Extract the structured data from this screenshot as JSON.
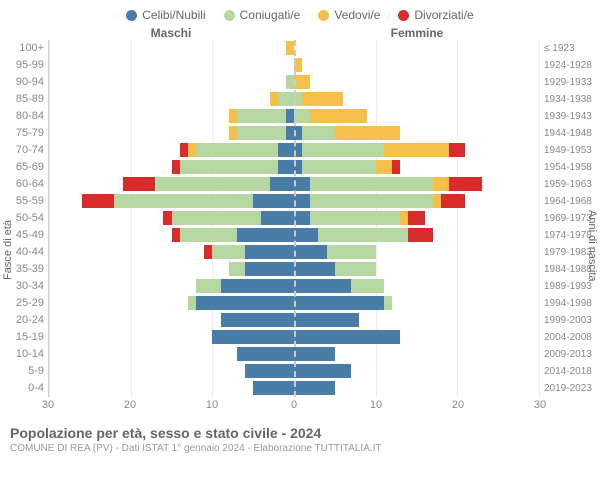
{
  "legend": [
    {
      "label": "Celibi/Nubili",
      "color": "#4a7ca8"
    },
    {
      "label": "Coniugati/e",
      "color": "#b6d7a1"
    },
    {
      "label": "Vedovi/e",
      "color": "#f5c04a"
    },
    {
      "label": "Divorziati/e",
      "color": "#d62c2c"
    }
  ],
  "header_left": "Maschi",
  "header_right": "Femmine",
  "ylabel_left": "Fasce di età",
  "ylabel_right": "Anni di nascita",
  "xmax": 30,
  "xticks_m": [
    30,
    20,
    10,
    0
  ],
  "xticks_f": [
    0,
    10,
    20,
    30
  ],
  "title": "Popolazione per età, sesso e stato civile - 2024",
  "subtitle": "COMUNE DI REA (PV) - Dati ISTAT 1° gennaio 2024 - Elaborazione TUTTITALIA.IT",
  "rows": [
    {
      "age": "100+",
      "birth": "≤ 1923",
      "m": {
        "cel": 0,
        "con": 0,
        "ved": 1,
        "div": 0
      },
      "f": {
        "cel": 0,
        "con": 0,
        "ved": 0,
        "div": 0
      }
    },
    {
      "age": "95-99",
      "birth": "1924-1928",
      "m": {
        "cel": 0,
        "con": 0,
        "ved": 0,
        "div": 0
      },
      "f": {
        "cel": 0,
        "con": 0,
        "ved": 1,
        "div": 0
      }
    },
    {
      "age": "90-94",
      "birth": "1929-1933",
      "m": {
        "cel": 0,
        "con": 1,
        "ved": 0,
        "div": 0
      },
      "f": {
        "cel": 0,
        "con": 0,
        "ved": 2,
        "div": 0
      }
    },
    {
      "age": "85-89",
      "birth": "1934-1938",
      "m": {
        "cel": 0,
        "con": 2,
        "ved": 1,
        "div": 0
      },
      "f": {
        "cel": 0,
        "con": 1,
        "ved": 5,
        "div": 0
      }
    },
    {
      "age": "80-84",
      "birth": "1939-1943",
      "m": {
        "cel": 1,
        "con": 6,
        "ved": 1,
        "div": 0
      },
      "f": {
        "cel": 0,
        "con": 2,
        "ved": 7,
        "div": 0
      }
    },
    {
      "age": "75-79",
      "birth": "1944-1948",
      "m": {
        "cel": 1,
        "con": 6,
        "ved": 1,
        "div": 0
      },
      "f": {
        "cel": 1,
        "con": 4,
        "ved": 8,
        "div": 0
      }
    },
    {
      "age": "70-74",
      "birth": "1949-1953",
      "m": {
        "cel": 2,
        "con": 10,
        "ved": 1,
        "div": 1
      },
      "f": {
        "cel": 1,
        "con": 10,
        "ved": 8,
        "div": 2
      }
    },
    {
      "age": "65-69",
      "birth": "1954-1958",
      "m": {
        "cel": 2,
        "con": 12,
        "ved": 0,
        "div": 1
      },
      "f": {
        "cel": 1,
        "con": 9,
        "ved": 2,
        "div": 1
      }
    },
    {
      "age": "60-64",
      "birth": "1959-1963",
      "m": {
        "cel": 3,
        "con": 14,
        "ved": 0,
        "div": 4
      },
      "f": {
        "cel": 2,
        "con": 15,
        "ved": 2,
        "div": 4
      }
    },
    {
      "age": "55-59",
      "birth": "1964-1968",
      "m": {
        "cel": 5,
        "con": 17,
        "ved": 0,
        "div": 4
      },
      "f": {
        "cel": 2,
        "con": 15,
        "ved": 1,
        "div": 3
      }
    },
    {
      "age": "50-54",
      "birth": "1969-1973",
      "m": {
        "cel": 4,
        "con": 11,
        "ved": 0,
        "div": 1
      },
      "f": {
        "cel": 2,
        "con": 11,
        "ved": 1,
        "div": 2
      }
    },
    {
      "age": "45-49",
      "birth": "1974-1978",
      "m": {
        "cel": 7,
        "con": 7,
        "ved": 0,
        "div": 1
      },
      "f": {
        "cel": 3,
        "con": 11,
        "ved": 0,
        "div": 3
      }
    },
    {
      "age": "40-44",
      "birth": "1979-1983",
      "m": {
        "cel": 6,
        "con": 4,
        "ved": 0,
        "div": 1
      },
      "f": {
        "cel": 4,
        "con": 6,
        "ved": 0,
        "div": 0
      }
    },
    {
      "age": "35-39",
      "birth": "1984-1988",
      "m": {
        "cel": 6,
        "con": 2,
        "ved": 0,
        "div": 0
      },
      "f": {
        "cel": 5,
        "con": 5,
        "ved": 0,
        "div": 0
      }
    },
    {
      "age": "30-34",
      "birth": "1989-1993",
      "m": {
        "cel": 9,
        "con": 3,
        "ved": 0,
        "div": 0
      },
      "f": {
        "cel": 7,
        "con": 4,
        "ved": 0,
        "div": 0
      }
    },
    {
      "age": "25-29",
      "birth": "1994-1998",
      "m": {
        "cel": 12,
        "con": 1,
        "ved": 0,
        "div": 0
      },
      "f": {
        "cel": 11,
        "con": 1,
        "ved": 0,
        "div": 0
      }
    },
    {
      "age": "20-24",
      "birth": "1999-2003",
      "m": {
        "cel": 9,
        "con": 0,
        "ved": 0,
        "div": 0
      },
      "f": {
        "cel": 8,
        "con": 0,
        "ved": 0,
        "div": 0
      }
    },
    {
      "age": "15-19",
      "birth": "2004-2008",
      "m": {
        "cel": 10,
        "con": 0,
        "ved": 0,
        "div": 0
      },
      "f": {
        "cel": 13,
        "con": 0,
        "ved": 0,
        "div": 0
      }
    },
    {
      "age": "10-14",
      "birth": "2009-2013",
      "m": {
        "cel": 7,
        "con": 0,
        "ved": 0,
        "div": 0
      },
      "f": {
        "cel": 5,
        "con": 0,
        "ved": 0,
        "div": 0
      }
    },
    {
      "age": "5-9",
      "birth": "2014-2018",
      "m": {
        "cel": 6,
        "con": 0,
        "ved": 0,
        "div": 0
      },
      "f": {
        "cel": 7,
        "con": 0,
        "ved": 0,
        "div": 0
      }
    },
    {
      "age": "0-4",
      "birth": "2019-2023",
      "m": {
        "cel": 5,
        "con": 0,
        "ved": 0,
        "div": 0
      },
      "f": {
        "cel": 5,
        "con": 0,
        "ved": 0,
        "div": 0
      }
    }
  ]
}
